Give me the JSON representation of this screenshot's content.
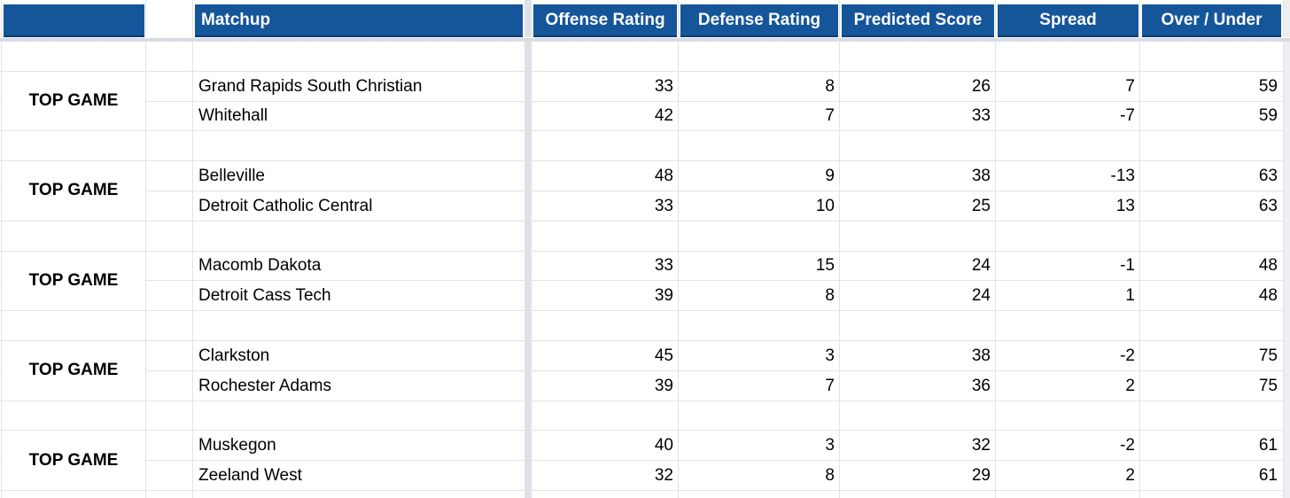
{
  "sheet": {
    "header": {
      "matchup": "Matchup",
      "offense": "Offense Rating",
      "defense": "Defense Rating",
      "predicted": "Predicted Score",
      "spread": "Spread",
      "over_under": "Over / Under"
    },
    "matchups": [
      {
        "label": "TOP GAME",
        "teams": [
          {
            "name": "Grand Rapids South Christian",
            "offense": 33,
            "defense": 8,
            "predicted": 26,
            "spread": 7,
            "over_under": 59
          },
          {
            "name": "Whitehall",
            "offense": 42,
            "defense": 7,
            "predicted": 33,
            "spread": -7,
            "over_under": 59
          }
        ]
      },
      {
        "label": "TOP GAME",
        "teams": [
          {
            "name": "Belleville",
            "offense": 48,
            "defense": 9,
            "predicted": 38,
            "spread": -13,
            "over_under": 63
          },
          {
            "name": "Detroit Catholic Central",
            "offense": 33,
            "defense": 10,
            "predicted": 25,
            "spread": 13,
            "over_under": 63
          }
        ]
      },
      {
        "label": "TOP GAME",
        "teams": [
          {
            "name": "Macomb Dakota",
            "offense": 33,
            "defense": 15,
            "predicted": 24,
            "spread": -1,
            "over_under": 48
          },
          {
            "name": "Detroit Cass Tech",
            "offense": 39,
            "defense": 8,
            "predicted": 24,
            "spread": 1,
            "over_under": 48
          }
        ]
      },
      {
        "label": "TOP GAME",
        "teams": [
          {
            "name": "Clarkston",
            "offense": 45,
            "defense": 3,
            "predicted": 38,
            "spread": -2,
            "over_under": 75
          },
          {
            "name": "Rochester Adams",
            "offense": 39,
            "defense": 7,
            "predicted": 36,
            "spread": 2,
            "over_under": 75
          }
        ]
      },
      {
        "label": "TOP GAME",
        "teams": [
          {
            "name": "Muskegon",
            "offense": 40,
            "defense": 3,
            "predicted": 32,
            "spread": -2,
            "over_under": 61
          },
          {
            "name": "Zeeland West",
            "offense": 32,
            "defense": 8,
            "predicted": 29,
            "spread": 2,
            "over_under": 61
          }
        ]
      }
    ],
    "colors": {
      "header_bg": "#15559A",
      "header_border_bottom": "#0E3B6F",
      "header_text": "#FFFFFF",
      "gridline": "#E2E2E2",
      "frozen_divider": "#DDE1E9",
      "edge_strip": "#ECEEF2",
      "body_text": "#000000"
    }
  }
}
